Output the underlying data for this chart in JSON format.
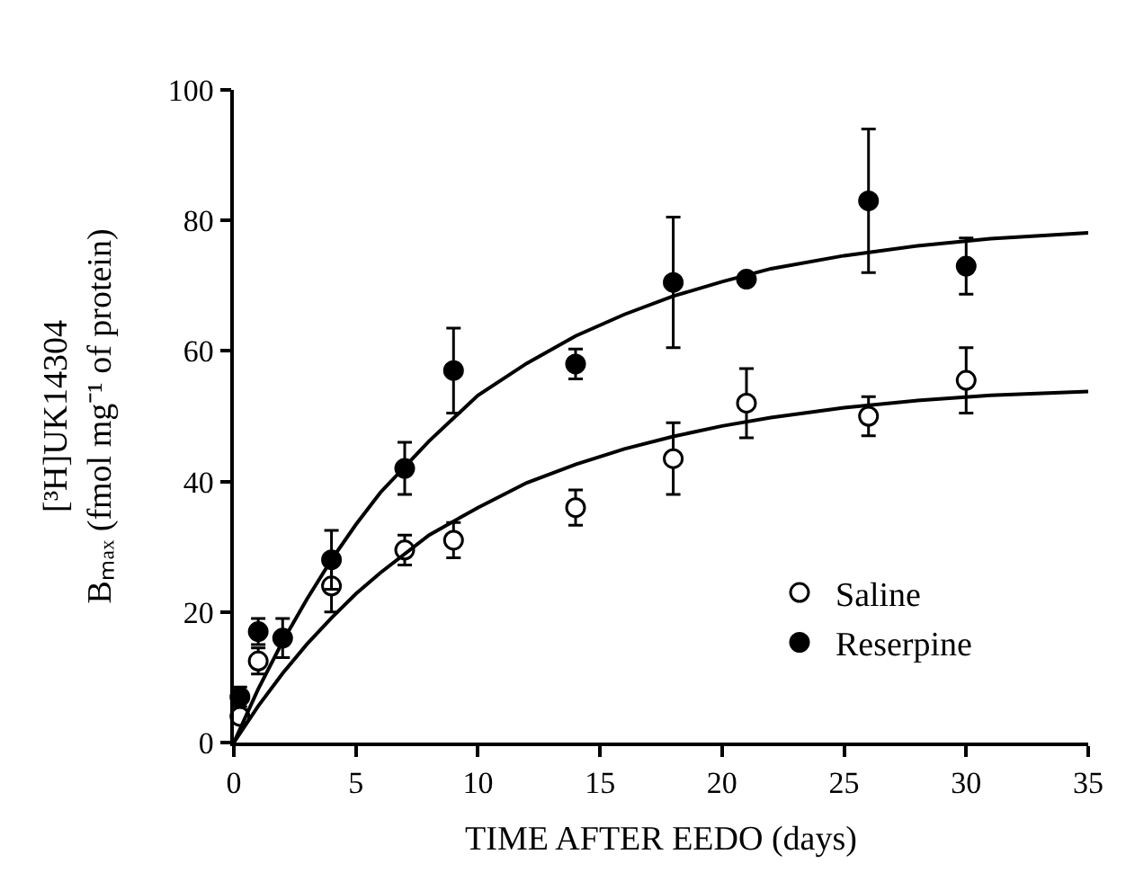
{
  "chart_data": {
    "type": "scatter",
    "xlabel": "TIME AFTER EEDO (days)",
    "ylabel": "[³H]UK14304\nBₘₐₓ (fmol mg⁻¹ of protein)",
    "xlim": [
      0,
      35
    ],
    "xticks": [
      0,
      5,
      10,
      15,
      20,
      25,
      30,
      35
    ],
    "ylim": [
      0,
      100
    ],
    "yticks": [
      0,
      20,
      40,
      60,
      80,
      100
    ],
    "legend": "bottom right",
    "series": [
      {
        "name": "Saline",
        "color": "#ffffff",
        "marker": "circle",
        "x": [
          0.25,
          1,
          4,
          7,
          9,
          14,
          18,
          21,
          26,
          30
        ],
        "values": [
          4,
          12.5,
          24,
          29.5,
          31,
          36,
          43.5,
          52,
          50,
          55.5
        ],
        "errors": [
          1,
          2,
          4,
          2.3,
          2.7,
          2.7,
          5.5,
          5.3,
          3,
          5
        ]
      },
      {
        "name": "Reserpine",
        "color": "#000000",
        "marker": "circle",
        "x": [
          0.25,
          1,
          2,
          4,
          7,
          9,
          14,
          18,
          21,
          26,
          30
        ],
        "values": [
          7,
          17,
          16,
          28,
          42,
          57,
          58,
          70.5,
          71,
          83,
          73
        ],
        "errors": [
          1.5,
          2,
          3,
          4.5,
          4,
          6.5,
          2.3,
          10,
          null,
          11,
          4.3
        ]
      },
      {
        "type": "line",
        "color": "#000000",
        "marker": "none",
        "x": [
          0,
          1,
          2,
          3,
          4,
          5,
          6,
          8,
          10,
          12,
          14,
          16,
          18,
          20,
          22,
          25,
          28,
          31,
          35
        ],
        "values": [
          0,
          5.6,
          10.6,
          15.1,
          19.1,
          22.8,
          26.0,
          31.8,
          36.0,
          39.8,
          42.6,
          45.0,
          46.9,
          48.5,
          49.8,
          51.3,
          52.4,
          53.2,
          53.8
        ]
      },
      {
        "type": "line",
        "color": "#000000",
        "marker": "none",
        "x": [
          0,
          1,
          2,
          3,
          4,
          5,
          6,
          8,
          10,
          12,
          14,
          16,
          18,
          20,
          22,
          25,
          28,
          31,
          35
        ],
        "values": [
          0,
          8.2,
          15.5,
          22.0,
          28.0,
          33.4,
          38.3,
          46.2,
          53.2,
          58.1,
          62.3,
          65.6,
          68.4,
          70.6,
          72.6,
          74.6,
          76.1,
          77.2,
          78.1
        ]
      }
    ]
  }
}
